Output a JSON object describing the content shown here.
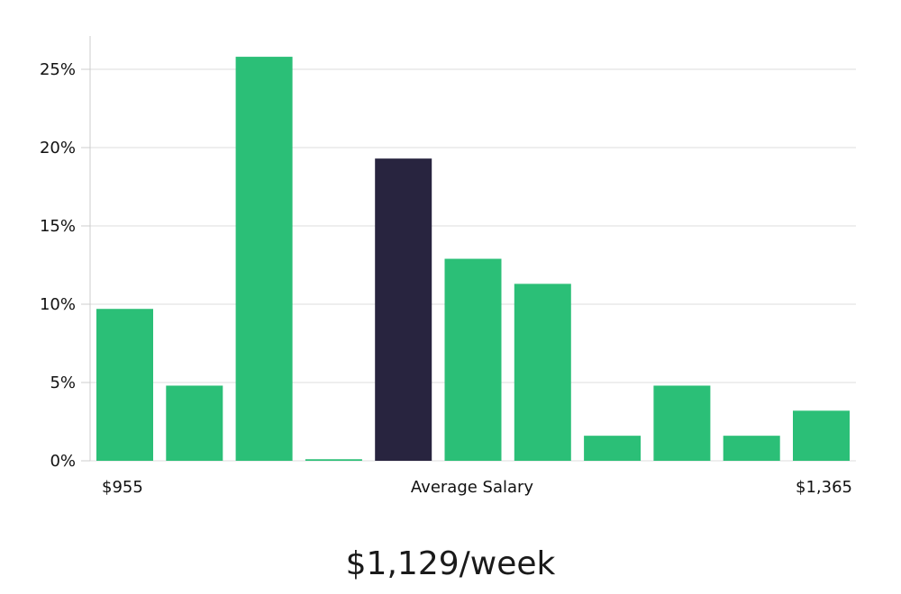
{
  "chart_data": {
    "type": "bar",
    "y_tick_labels": [
      "0%",
      "5%",
      "10%",
      "15%",
      "20%",
      "25%"
    ],
    "ylim": [
      0,
      27
    ],
    "values": [
      9.7,
      4.8,
      25.8,
      0.1,
      19.3,
      12.9,
      11.3,
      1.6,
      4.8,
      1.6,
      3.2
    ],
    "highlight_index": 4,
    "x_labels": {
      "left": "$955",
      "center": "Average Salary",
      "right": "$1,365"
    },
    "grid": true,
    "colors": {
      "bar": "#2bbf77",
      "highlight": "#28243f",
      "grid": "#dddddd",
      "axis": "#cccccc"
    }
  },
  "summary": {
    "average_salary": "$1,129/week"
  }
}
